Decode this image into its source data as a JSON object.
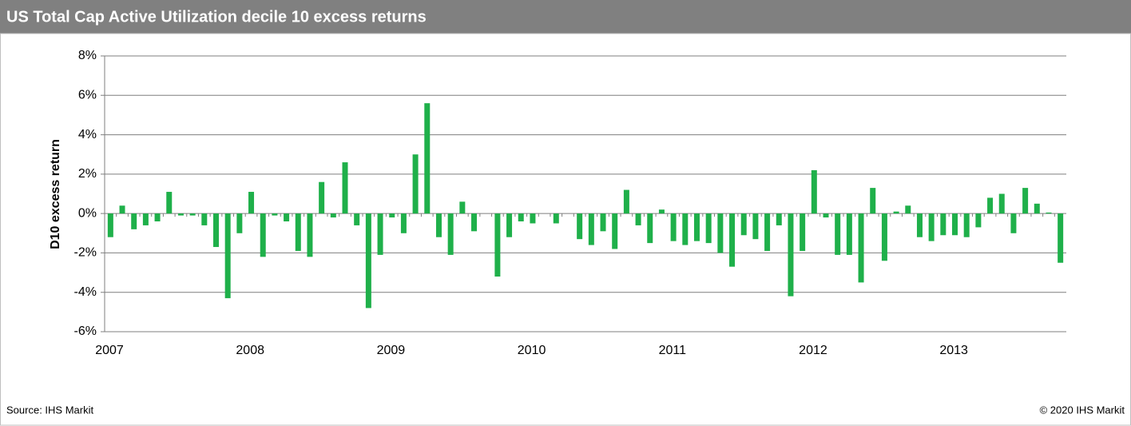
{
  "chart_data": {
    "type": "bar",
    "title": "US Total Cap Active Utilization decile 10 excess returns",
    "y_label": "D10 excess return",
    "source": "Source: IHS Markit",
    "copyright": "© 2020 IHS Markit",
    "color": "#1fb04a",
    "categories": [
      "2007",
      null,
      null,
      null,
      null,
      null,
      null,
      null,
      null,
      null,
      null,
      null,
      "2008",
      null,
      null,
      null,
      null,
      null,
      null,
      null,
      null,
      null,
      null,
      null,
      "2009",
      null,
      null,
      null,
      null,
      null,
      null,
      null,
      null,
      null,
      null,
      null,
      "2010",
      null,
      null,
      null,
      null,
      null,
      null,
      null,
      null,
      null,
      null,
      null,
      "2011",
      null,
      null,
      null,
      null,
      null,
      null,
      null,
      null,
      null,
      null,
      null,
      "2012",
      null,
      null,
      null,
      null,
      null,
      null,
      null,
      null,
      null,
      null,
      null,
      "2013",
      null,
      null,
      null,
      null,
      null,
      null,
      null,
      null,
      null
    ],
    "values": [
      -1.2,
      0.4,
      -0.8,
      -0.6,
      -0.4,
      1.1,
      -0.1,
      -0.1,
      -0.6,
      -1.7,
      -4.3,
      -1.0,
      1.1,
      -2.2,
      -0.1,
      -0.4,
      -1.9,
      -2.2,
      1.6,
      -0.2,
      2.6,
      -0.6,
      -4.8,
      -2.1,
      -0.2,
      -1.0,
      3.0,
      5.6,
      -1.2,
      -2.1,
      0.6,
      -0.9,
      0.0,
      -3.2,
      -1.2,
      -0.4,
      -0.5,
      0.0,
      -0.5,
      0.0,
      -1.3,
      -1.6,
      -0.9,
      -1.8,
      1.2,
      -0.6,
      -1.5,
      0.2,
      -1.4,
      -1.6,
      -1.4,
      -1.5,
      -2.0,
      -2.7,
      -1.1,
      -1.3,
      -1.9,
      -0.6,
      -4.2,
      -1.9,
      2.2,
      -0.2,
      -2.1,
      -2.1,
      -3.5,
      1.3,
      -2.4,
      0.1,
      0.4,
      -1.2,
      -1.4,
      -1.1,
      -1.1,
      -1.2,
      -0.7,
      0.8,
      1.0,
      -1.0,
      1.3,
      0.5,
      0.05,
      -2.5
    ],
    "ylim": [
      -6,
      8
    ],
    "yticks": [
      {
        "value": -6,
        "label": "-6%"
      },
      {
        "value": -4,
        "label": "-4%"
      },
      {
        "value": -2,
        "label": "-2%"
      },
      {
        "value": 0,
        "label": "0%"
      },
      {
        "value": 2,
        "label": "2%"
      },
      {
        "value": 4,
        "label": "4%"
      },
      {
        "value": 6,
        "label": "6%"
      },
      {
        "value": 8,
        "label": "8%"
      }
    ],
    "grid": true
  }
}
